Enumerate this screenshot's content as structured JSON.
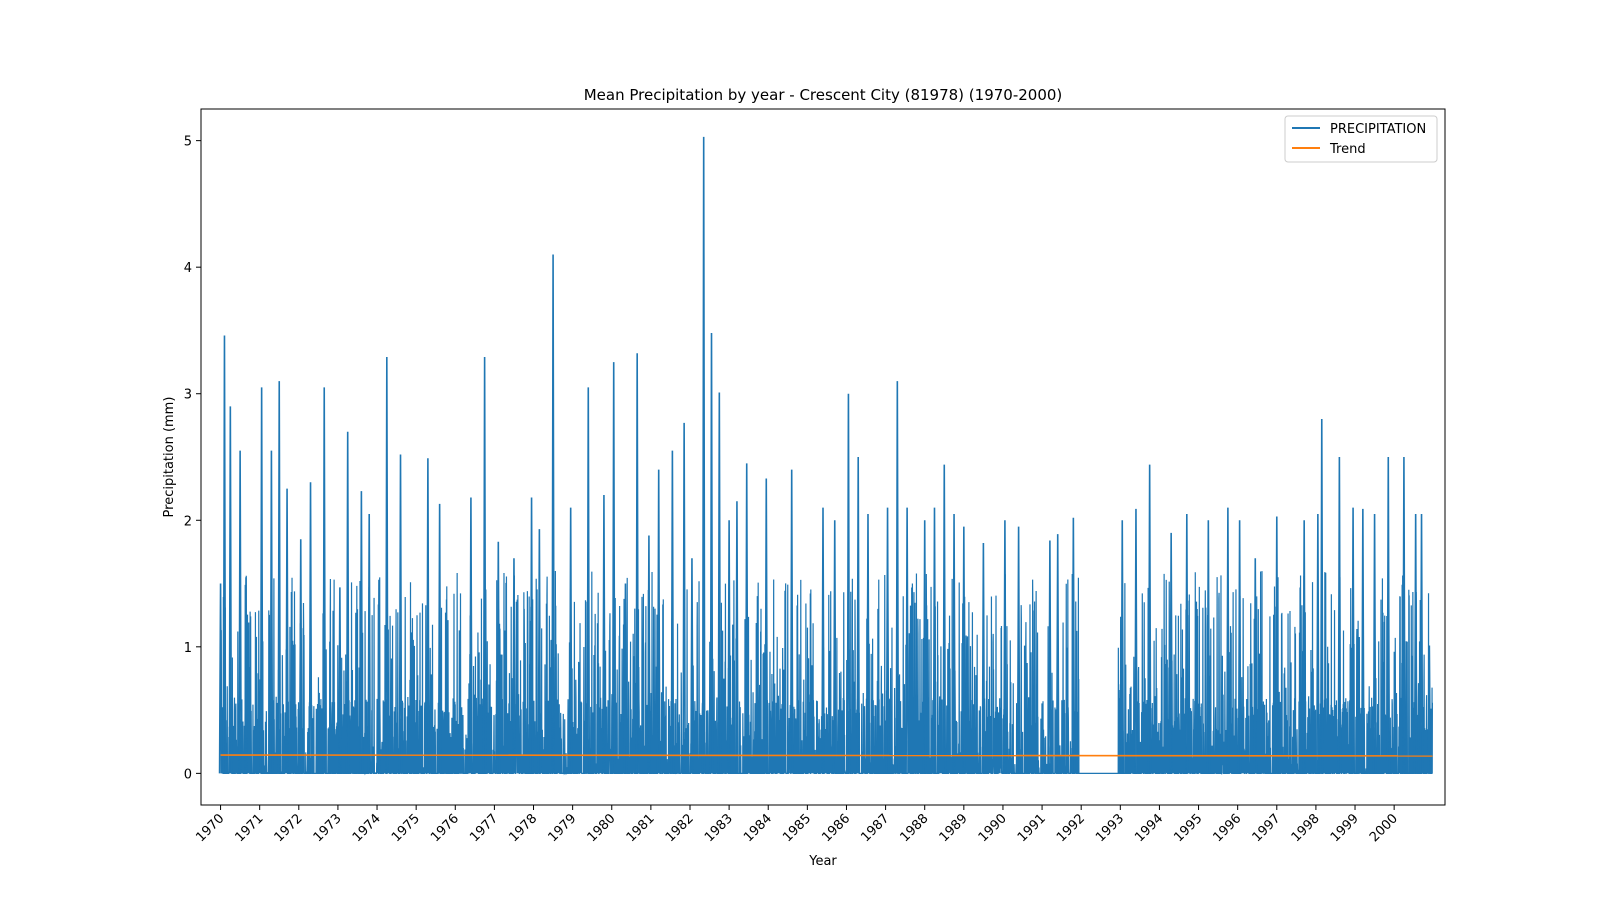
{
  "chart_data": {
    "type": "line",
    "title": "Mean Precipitation by year - Crescent City (81978) (1970-2000)",
    "xlabel": "Year",
    "ylabel": "Precipitation (mm)",
    "xlim": [
      1969.5,
      2001.3
    ],
    "ylim": [
      -0.25,
      5.25
    ],
    "x_ticks": [
      "1970",
      "1971",
      "1972",
      "1973",
      "1974",
      "1975",
      "1976",
      "1977",
      "1978",
      "1979",
      "1980",
      "1981",
      "1982",
      "1983",
      "1984",
      "1985",
      "1986",
      "1987",
      "1988",
      "1989",
      "1990",
      "1991",
      "1992",
      "1993",
      "1994",
      "1995",
      "1996",
      "1997",
      "1998",
      "1999",
      "2000"
    ],
    "y_ticks": [
      0,
      1,
      2,
      3,
      4,
      5
    ],
    "grid": false,
    "legend_position": "top-right",
    "missing_data_gap": [
      1991.95,
      1992.95
    ],
    "series": [
      {
        "name": "PRECIPITATION",
        "color": "#1f77b4",
        "peaks": [
          {
            "x": 1970.0,
            "y": 1.5
          },
          {
            "x": 1970.1,
            "y": 3.46
          },
          {
            "x": 1970.25,
            "y": 2.9
          },
          {
            "x": 1970.5,
            "y": 2.55
          },
          {
            "x": 1970.65,
            "y": 1.55
          },
          {
            "x": 1971.05,
            "y": 3.05
          },
          {
            "x": 1971.3,
            "y": 2.55
          },
          {
            "x": 1971.5,
            "y": 3.1
          },
          {
            "x": 1971.7,
            "y": 2.25
          },
          {
            "x": 1972.05,
            "y": 1.85
          },
          {
            "x": 1972.3,
            "y": 2.3
          },
          {
            "x": 1972.65,
            "y": 3.05
          },
          {
            "x": 1973.05,
            "y": 1.47
          },
          {
            "x": 1973.25,
            "y": 2.7
          },
          {
            "x": 1973.6,
            "y": 2.23
          },
          {
            "x": 1973.8,
            "y": 2.05
          },
          {
            "x": 1974.05,
            "y": 1.53
          },
          {
            "x": 1974.25,
            "y": 3.29
          },
          {
            "x": 1974.6,
            "y": 2.52
          },
          {
            "x": 1975.3,
            "y": 2.49
          },
          {
            "x": 1975.6,
            "y": 2.13
          },
          {
            "x": 1976.4,
            "y": 2.18
          },
          {
            "x": 1976.75,
            "y": 3.29
          },
          {
            "x": 1977.1,
            "y": 1.83
          },
          {
            "x": 1977.5,
            "y": 1.7
          },
          {
            "x": 1977.95,
            "y": 2.18
          },
          {
            "x": 1978.15,
            "y": 1.93
          },
          {
            "x": 1978.5,
            "y": 4.1
          },
          {
            "x": 1978.95,
            "y": 2.1
          },
          {
            "x": 1979.4,
            "y": 3.05
          },
          {
            "x": 1979.8,
            "y": 2.2
          },
          {
            "x": 1980.05,
            "y": 3.25
          },
          {
            "x": 1980.35,
            "y": 1.5
          },
          {
            "x": 1980.65,
            "y": 3.32
          },
          {
            "x": 1980.95,
            "y": 1.88
          },
          {
            "x": 1981.2,
            "y": 2.4
          },
          {
            "x": 1981.55,
            "y": 2.55
          },
          {
            "x": 1981.85,
            "y": 2.77
          },
          {
            "x": 1982.05,
            "y": 1.7
          },
          {
            "x": 1982.35,
            "y": 5.03
          },
          {
            "x": 1982.55,
            "y": 3.48
          },
          {
            "x": 1982.75,
            "y": 3.01
          },
          {
            "x": 1983.0,
            "y": 2.0
          },
          {
            "x": 1983.2,
            "y": 2.15
          },
          {
            "x": 1983.45,
            "y": 2.45
          },
          {
            "x": 1983.95,
            "y": 2.33
          },
          {
            "x": 1984.6,
            "y": 2.4
          },
          {
            "x": 1985.4,
            "y": 2.1
          },
          {
            "x": 1985.7,
            "y": 2.0
          },
          {
            "x": 1986.05,
            "y": 3.0
          },
          {
            "x": 1986.3,
            "y": 2.5
          },
          {
            "x": 1986.55,
            "y": 2.05
          },
          {
            "x": 1987.05,
            "y": 2.1
          },
          {
            "x": 1987.3,
            "y": 3.1
          },
          {
            "x": 1987.55,
            "y": 2.1
          },
          {
            "x": 1988.0,
            "y": 2.0
          },
          {
            "x": 1988.25,
            "y": 2.1
          },
          {
            "x": 1988.5,
            "y": 2.44
          },
          {
            "x": 1988.75,
            "y": 2.05
          },
          {
            "x": 1989.0,
            "y": 1.95
          },
          {
            "x": 1989.5,
            "y": 1.82
          },
          {
            "x": 1990.05,
            "y": 2.0
          },
          {
            "x": 1990.4,
            "y": 1.95
          },
          {
            "x": 1991.2,
            "y": 1.84
          },
          {
            "x": 1991.4,
            "y": 1.89
          },
          {
            "x": 1991.8,
            "y": 2.02
          },
          {
            "x": 1993.05,
            "y": 2.0
          },
          {
            "x": 1993.4,
            "y": 2.09
          },
          {
            "x": 1993.75,
            "y": 2.44
          },
          {
            "x": 1994.3,
            "y": 1.9
          },
          {
            "x": 1994.7,
            "y": 2.05
          },
          {
            "x": 1995.25,
            "y": 2.0
          },
          {
            "x": 1995.75,
            "y": 2.1
          },
          {
            "x": 1996.05,
            "y": 2.0
          },
          {
            "x": 1996.45,
            "y": 1.7
          },
          {
            "x": 1997.0,
            "y": 2.03
          },
          {
            "x": 1997.7,
            "y": 2.0
          },
          {
            "x": 1998.05,
            "y": 2.05
          },
          {
            "x": 1998.15,
            "y": 2.8
          },
          {
            "x": 1998.6,
            "y": 2.5
          },
          {
            "x": 1998.95,
            "y": 2.1
          },
          {
            "x": 1999.2,
            "y": 2.09
          },
          {
            "x": 1999.5,
            "y": 2.05
          },
          {
            "x": 1999.85,
            "y": 2.5
          },
          {
            "x": 2000.25,
            "y": 2.5
          },
          {
            "x": 2000.55,
            "y": 2.05
          },
          {
            "x": 2000.7,
            "y": 2.05
          },
          {
            "x": 2000.9,
            "y": 1.01
          }
        ]
      },
      {
        "name": "Trend",
        "color": "#ff7f0e",
        "x": [
          1970.0,
          2000.98
        ],
        "y": [
          0.145,
          0.138
        ]
      }
    ]
  }
}
